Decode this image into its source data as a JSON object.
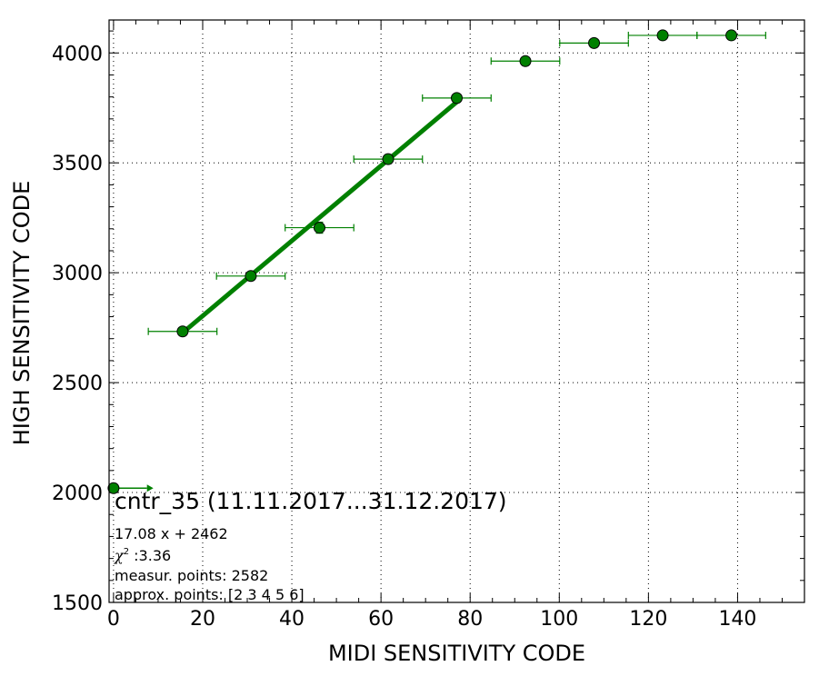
{
  "chart_data": {
    "type": "scatter",
    "xlabel": "MIDI SENSITIVITY CODE",
    "ylabel": "HIGH SENSITIVITY CODE",
    "xlim": [
      -1,
      155
    ],
    "ylim": [
      1500,
      4150
    ],
    "x_ticks": [
      0,
      20,
      40,
      60,
      80,
      100,
      120,
      140
    ],
    "y_ticks": [
      1500,
      2000,
      2500,
      3000,
      3500,
      4000
    ],
    "grid": true,
    "colors": {
      "series": "#008000",
      "marker_edge": "#000000"
    },
    "series": [
      {
        "points": [
          {
            "x": 0,
            "y": 2020,
            "x_err": 0,
            "y_err": 0,
            "arrow_to": 7.5
          },
          {
            "x": 15.5,
            "y": 2733,
            "x_err": 7.7,
            "y_err": 8
          },
          {
            "x": 30.8,
            "y": 2985,
            "x_err": 7.7,
            "y_err": 10
          },
          {
            "x": 46.2,
            "y": 3205,
            "x_err": 7.7,
            "y_err": 25
          },
          {
            "x": 61.6,
            "y": 3517,
            "x_err": 7.7,
            "y_err": 20
          },
          {
            "x": 77.0,
            "y": 3795,
            "x_err": 7.7,
            "y_err": 8
          },
          {
            "x": 92.4,
            "y": 3963,
            "x_err": 7.7,
            "y_err": 6
          },
          {
            "x": 107.8,
            "y": 4045,
            "x_err": 7.7,
            "y_err": 6
          },
          {
            "x": 123.2,
            "y": 4080,
            "x_err": 7.7,
            "y_err": 5
          },
          {
            "x": 138.6,
            "y": 4080,
            "x_err": 7.7,
            "y_err": 5
          }
        ]
      }
    ],
    "fit_line": {
      "slope": 17.08,
      "intercept": 2462,
      "x_range": [
        15.5,
        77.0
      ]
    },
    "annotations": {
      "title": "cntr_35 (11.11.2017...31.12.2017)",
      "equation": "17.08 x + 2462",
      "chi_symbol": "χ",
      "chi_sup": "2",
      "chi_value": " :3.36",
      "measur_points": "measur. points: 2582",
      "approx_points": "approx. points: [2 3 4 5 6]"
    }
  }
}
